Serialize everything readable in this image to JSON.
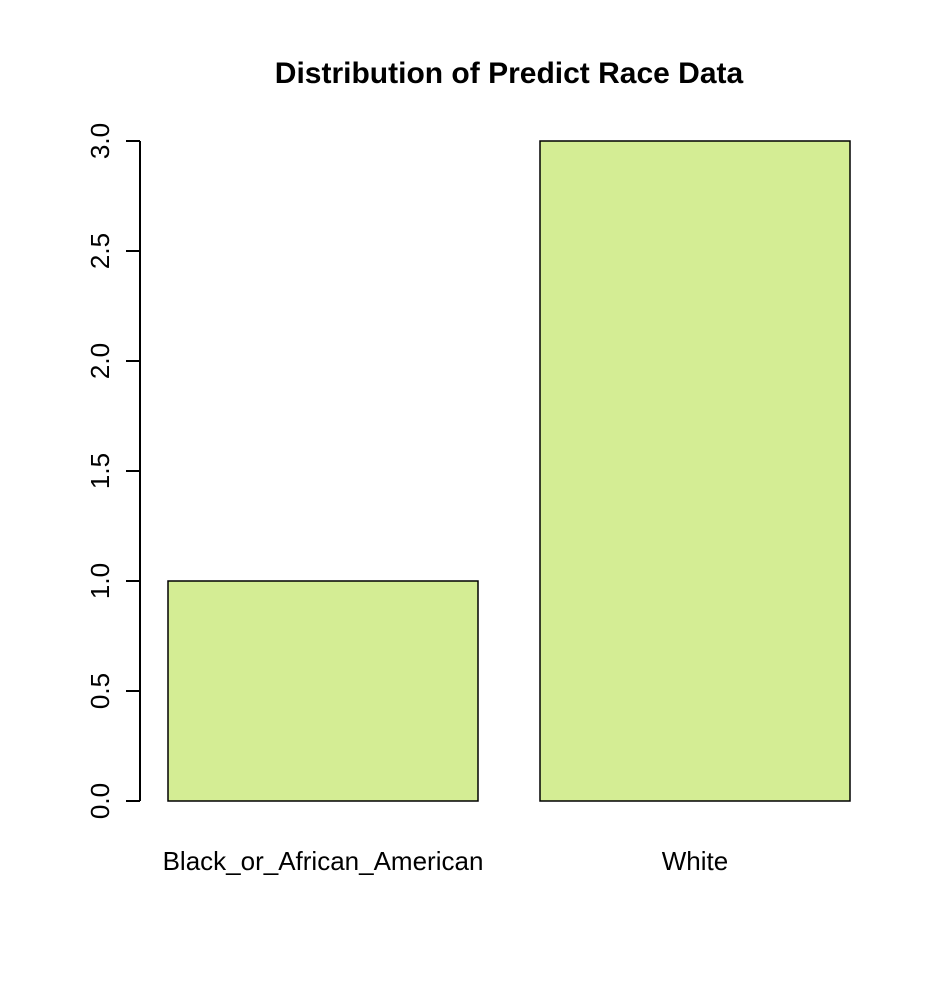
{
  "chart_data": {
    "type": "bar",
    "title": "Distribution of Predict Race Data",
    "xlabel": "",
    "ylabel": "",
    "categories": [
      "Black_or_African_American",
      "White"
    ],
    "values": [
      1,
      3
    ],
    "ylim": [
      0,
      3
    ],
    "yticks": [
      "0.0",
      "0.5",
      "1.0",
      "1.5",
      "2.0",
      "2.5",
      "3.0"
    ],
    "grid": false,
    "legend": "none",
    "bar_color": "#d4ed94"
  }
}
